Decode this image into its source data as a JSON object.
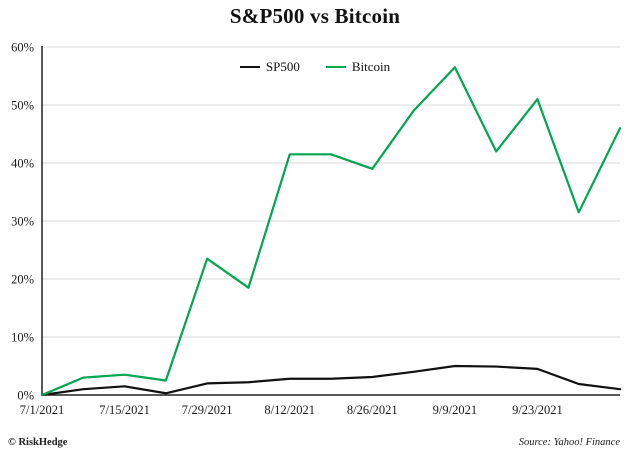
{
  "page": {
    "title": "S&P500 vs Bitcoin",
    "footer_left": "© RiskHedge",
    "footer_right": "Source: Yahoo! Finance"
  },
  "chart_data": {
    "type": "line",
    "title": "S&P500 vs Bitcoin",
    "x": [
      "7/1/2021",
      "7/8/2021",
      "7/15/2021",
      "7/22/2021",
      "7/29/2021",
      "8/5/2021",
      "8/12/2021",
      "8/19/2021",
      "8/26/2021",
      "9/2/2021",
      "9/9/2021",
      "9/16/2021",
      "9/23/2021",
      "9/30/2021",
      "10/7/2021"
    ],
    "x_tick_labels": [
      "7/1/2021",
      "7/15/2021",
      "7/29/2021",
      "8/12/2021",
      "8/26/2021",
      "9/9/2021",
      "9/23/2021"
    ],
    "x_tick_indices": [
      0,
      2,
      4,
      6,
      8,
      10,
      12
    ],
    "y_ticks": [
      0,
      10,
      20,
      30,
      40,
      50,
      60
    ],
    "y_tick_suffix": "%",
    "ylim": [
      0,
      60
    ],
    "grid": "horizontal",
    "legend_position": "top-center",
    "series": [
      {
        "name": "SP500",
        "color": "#111111",
        "values": [
          0,
          1.0,
          1.5,
          0.3,
          2.0,
          2.2,
          2.8,
          2.8,
          3.1,
          4.0,
          5.0,
          4.9,
          4.5,
          1.9,
          1.0
        ]
      },
      {
        "name": "Bitcoin",
        "color": "#00a651",
        "values": [
          0,
          3.0,
          3.5,
          2.5,
          23.5,
          18.5,
          41.5,
          41.5,
          39.0,
          49.0,
          56.5,
          42.0,
          51.0,
          31.5,
          46.0
        ]
      }
    ]
  }
}
